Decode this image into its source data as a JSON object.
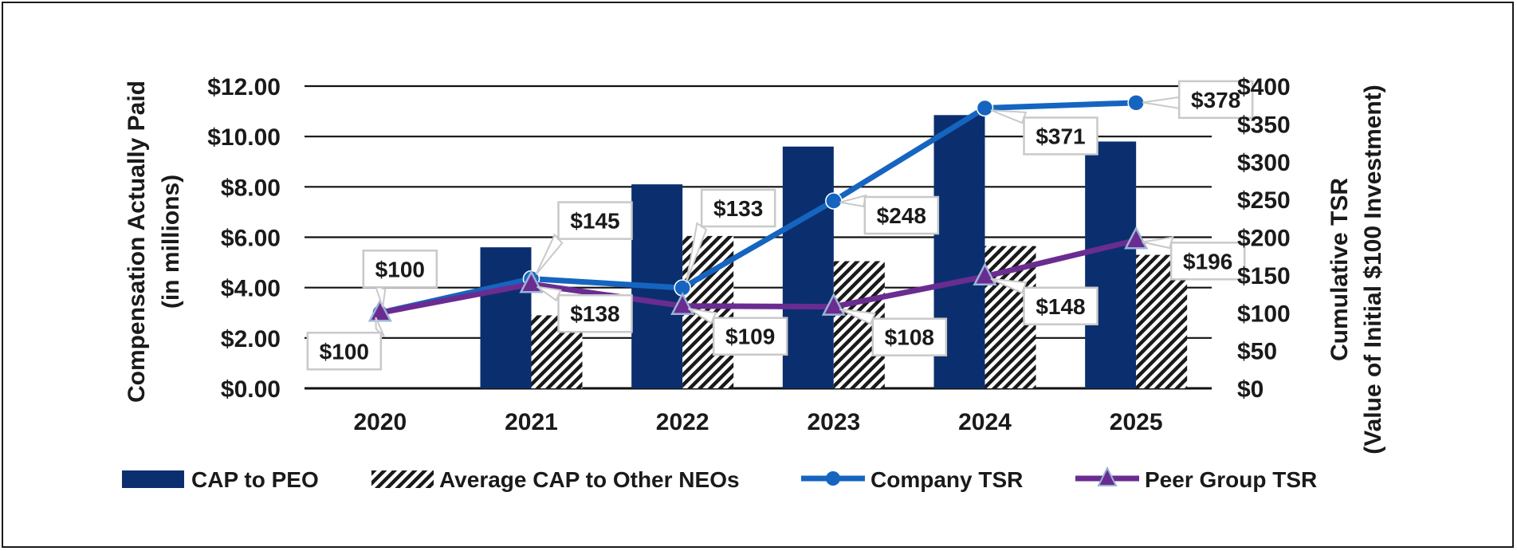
{
  "chart_data": {
    "type": "bar+line",
    "categories": [
      "2020",
      "2021",
      "2022",
      "2023",
      "2024",
      "2025"
    ],
    "bar_series": [
      {
        "name": "CAP to PEO",
        "values": [
          0,
          5.6,
          8.1,
          9.6,
          10.85,
          9.8
        ],
        "color": "#0b2f6e",
        "pattern": "solid"
      },
      {
        "name": "Average CAP to Other NEOs",
        "values": [
          0,
          2.9,
          6.05,
          5.05,
          5.65,
          5.3
        ],
        "color": "#1a1a1a",
        "pattern": "hatch"
      }
    ],
    "line_series": [
      {
        "name": "Company TSR",
        "values": [
          100,
          145,
          133,
          248,
          371,
          378
        ],
        "labels": [
          "$100",
          "$145",
          "$133",
          "$248",
          "$371",
          "$378"
        ],
        "color": "#1565c0",
        "marker": "circle"
      },
      {
        "name": "Peer Group TSR",
        "values": [
          100,
          138,
          109,
          108,
          148,
          196
        ],
        "labels": [
          "$100",
          "$138",
          "$109",
          "$108",
          "$148",
          "$196"
        ],
        "color": "#6a2c91",
        "marker": "triangle"
      }
    ],
    "y_left": {
      "label_line1": "Compensation Actually Paid",
      "label_line2": "(in millions)",
      "ylim": [
        0,
        12
      ],
      "ticks": [
        "$0.00",
        "$2.00",
        "$4.00",
        "$6.00",
        "$8.00",
        "$10.00",
        "$12.00"
      ]
    },
    "y_right": {
      "label_line1": "Cumulative TSR",
      "label_line2": "(Value of Initial $100 Investment)",
      "ylim": [
        0,
        400
      ],
      "ticks": [
        "$0",
        "$50",
        "$100",
        "$150",
        "$200",
        "$250",
        "$300",
        "$350",
        "$400"
      ]
    },
    "legend": {
      "position": "bottom",
      "items": [
        "CAP to PEO",
        "Average CAP to Other NEOs",
        "Company TSR",
        "Peer Group TSR"
      ]
    },
    "grid": true
  }
}
